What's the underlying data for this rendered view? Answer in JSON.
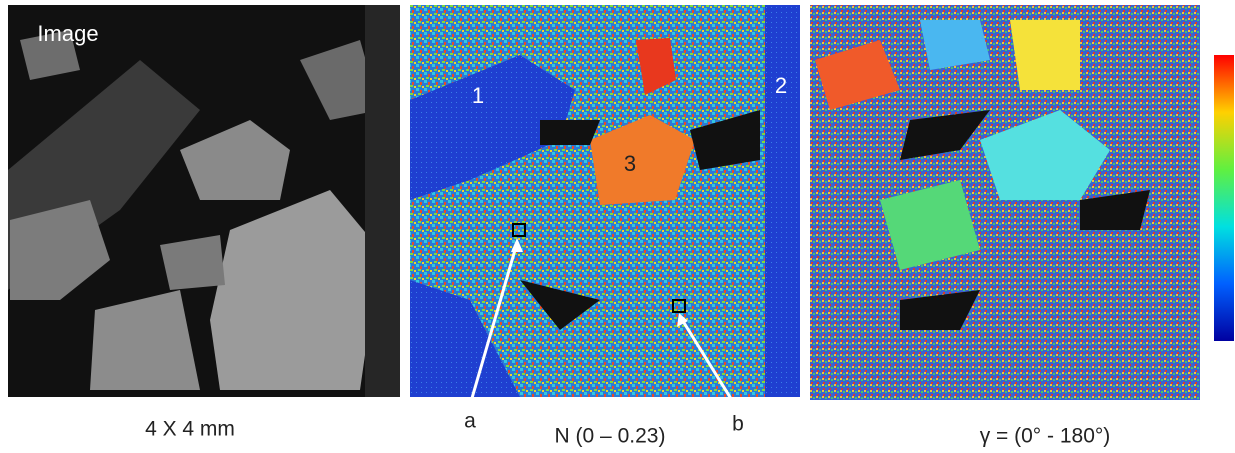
{
  "panels": [
    {
      "label": "Image",
      "caption": "4 X 4 mm"
    },
    {
      "annotations": [
        "1",
        "2",
        "3"
      ],
      "markers": [
        "a",
        "b"
      ],
      "caption": "N (0 – 0.23)"
    },
    {
      "caption": "γ = (0° - 180°)"
    }
  ]
}
